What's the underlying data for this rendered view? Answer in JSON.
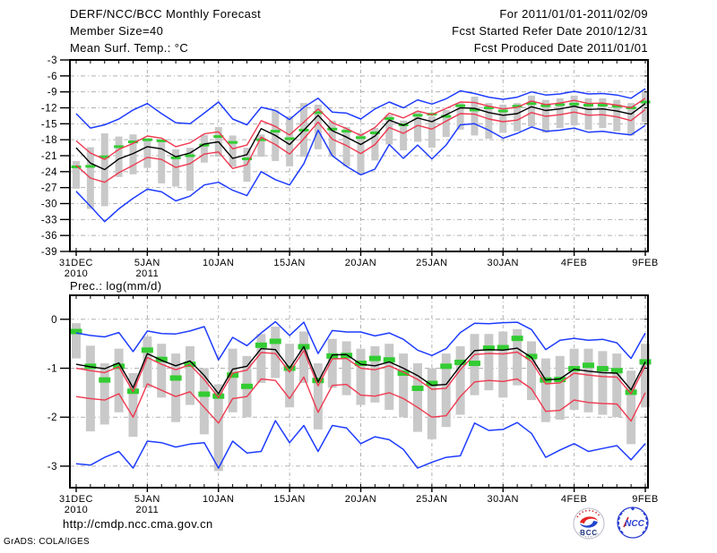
{
  "header": {
    "title": "DERF/NCC/BCC Monthly Forecast",
    "for_range": "For 2011/01/01-2011/02/09",
    "member_size": "Member Size=40",
    "refer_date": "Fcst Started Refer Date 2010/12/31",
    "produced_date": "Fcst Produced Date 2011/01/01",
    "panel1_label": "Mean Surf. Temp.: °C",
    "panel2_label": "Prec.: log(mm/d)"
  },
  "footer": {
    "url": "http://cmdp.ncc.cma.gov.cn",
    "credit": "GrADS: COLA/IGES",
    "logo_bcc": "BCC",
    "logo_ncc": "NCC"
  },
  "colors": {
    "black": "#000000",
    "red": "#ef3950",
    "blue": "#1e3cff",
    "green": "#33cc33",
    "bar": "#c9c9c9",
    "grid": "#b0b0b0",
    "frame": "#000000",
    "logo_blue": "#2b3fd0",
    "logo_red": "#e62222",
    "logo_navy": "#1a2f7a"
  },
  "chart_data": [
    {
      "type": "line",
      "panel_name": "temperature-panel",
      "title": "Mean Surf. Temp.: °C",
      "ylim": [
        -39.0,
        -3.0
      ],
      "yticks": [
        -3,
        -6,
        -9,
        -12,
        -15,
        -18,
        -21,
        -24,
        -27,
        -30,
        -33,
        -36,
        -39
      ],
      "grid": true,
      "legend": "none",
      "x_count": 41,
      "x_tick_positions": [
        0,
        5,
        10,
        15,
        20,
        25,
        30,
        35,
        40
      ],
      "x_tick_labels": [
        "31DEC",
        "5JAN",
        "10JAN",
        "15JAN",
        "20JAN",
        "25JAN",
        "30JAN",
        "4FEB",
        "9FEB"
      ],
      "x_tick_sublabels": [
        "2010",
        "2011",
        "",
        "",
        "",
        "",
        "",
        "",
        ""
      ],
      "series": [
        {
          "name": "upper-envelope-line",
          "label": "ensemble max",
          "color": "blue",
          "values": [
            -13.1,
            -15.8,
            -15.2,
            -14.1,
            -12.4,
            -11.2,
            -13.1,
            -14.8,
            -15.0,
            -13.0,
            -10.9,
            -14.1,
            -15.2,
            -11.9,
            -12.5,
            -14.2,
            -11.9,
            -10.2,
            -12.8,
            -13.0,
            -14.1,
            -12.2,
            -10.9,
            -12.0,
            -10.5,
            -11.3,
            -10.3,
            -8.8,
            -9.3,
            -10.0,
            -10.4,
            -10.0,
            -9.0,
            -9.6,
            -9.4,
            -8.9,
            -9.4,
            -9.3,
            -9.6,
            -10.2,
            -8.4
          ]
        },
        {
          "name": "upper-spread-line",
          "label": "upper spread",
          "color": "red",
          "values": [
            -18.2,
            -20.5,
            -21.7,
            -19.8,
            -18.7,
            -17.3,
            -17.7,
            -19.3,
            -18.6,
            -16.9,
            -16.5,
            -19.7,
            -19.0,
            -14.4,
            -15.5,
            -17.1,
            -14.7,
            -12.2,
            -14.8,
            -15.9,
            -17.2,
            -15.7,
            -13.0,
            -13.9,
            -12.6,
            -13.3,
            -12.1,
            -10.9,
            -11.0,
            -11.7,
            -12.2,
            -11.9,
            -10.7,
            -11.4,
            -11.1,
            -10.6,
            -11.2,
            -11.1,
            -11.5,
            -12.0,
            -10.2
          ]
        },
        {
          "name": "ensemble-mean-line",
          "label": "ensemble mean",
          "color": "black",
          "values": [
            -19.5,
            -22.4,
            -23.6,
            -21.6,
            -20.6,
            -19.3,
            -19.7,
            -21.2,
            -20.5,
            -18.8,
            -18.4,
            -21.5,
            -20.8,
            -15.9,
            -17.2,
            -18.9,
            -16.2,
            -13.4,
            -16.3,
            -17.5,
            -18.9,
            -17.3,
            -14.3,
            -15.3,
            -13.9,
            -14.6,
            -13.3,
            -12.0,
            -12.1,
            -12.9,
            -13.4,
            -13.1,
            -11.8,
            -12.5,
            -12.2,
            -11.7,
            -12.3,
            -12.2,
            -12.6,
            -13.2,
            -11.2
          ]
        },
        {
          "name": "lower-spread-line",
          "label": "lower spread",
          "color": "red",
          "values": [
            -22.8,
            -25.2,
            -26.0,
            -24.2,
            -22.8,
            -21.3,
            -21.7,
            -23.2,
            -22.5,
            -20.7,
            -20.3,
            -23.4,
            -22.7,
            -17.5,
            -18.9,
            -20.7,
            -17.8,
            -14.7,
            -17.9,
            -19.1,
            -20.6,
            -18.9,
            -15.7,
            -16.8,
            -15.3,
            -16.0,
            -14.5,
            -13.1,
            -13.2,
            -14.1,
            -14.6,
            -14.3,
            -12.9,
            -13.6,
            -13.3,
            -12.8,
            -13.4,
            -13.3,
            -13.7,
            -14.4,
            -12.3
          ]
        },
        {
          "name": "lower-envelope-line",
          "label": "ensemble min",
          "color": "blue",
          "values": [
            -27.7,
            -30.5,
            -33.4,
            -31.0,
            -29.0,
            -27.3,
            -27.8,
            -29.5,
            -28.6,
            -26.5,
            -26.0,
            -27.5,
            -28.5,
            -24.0,
            -25.5,
            -26.5,
            -22.5,
            -16.2,
            -21.0,
            -23.0,
            -24.6,
            -23.5,
            -18.9,
            -21.5,
            -19.0,
            -21.6,
            -19.0,
            -15.2,
            -15.0,
            -16.2,
            -17.7,
            -16.8,
            -15.6,
            -16.4,
            -16.2,
            -15.8,
            -16.6,
            -16.4,
            -16.8,
            -17.1,
            -15.3
          ]
        },
        {
          "name": "green-daily-marker",
          "label": "daily marker",
          "color": "green",
          "type": "dash",
          "values": [
            -23.1,
            -23.0,
            -21.2,
            -19.3,
            -18.4,
            -18.0,
            -18.2,
            -21.4,
            -21.0,
            -19.0,
            -17.4,
            -18.5,
            -21.6,
            -18.0,
            -16.4,
            -17.8,
            -16.2,
            -12.9,
            -16.0,
            -16.4,
            -17.6,
            -16.7,
            -14.0,
            -15.2,
            -13.4,
            -13.2,
            -13.6,
            -11.6,
            -12.4,
            -12.0,
            -12.6,
            -11.7,
            -11.2,
            -11.6,
            -11.4,
            -11.3,
            -11.5,
            -11.5,
            -11.7,
            -12.0,
            -10.9
          ]
        }
      ],
      "bars": {
        "name": "ensemble-members-bar",
        "top": [
          -22.0,
          -19.4,
          -16.8,
          -17.4,
          -17.0,
          -17.8,
          -18.4,
          -19.8,
          -19.5,
          -17.1,
          -15.6,
          -17.2,
          -19.5,
          -17.0,
          -12.5,
          -13.6,
          -11.1,
          -11.4,
          -14.4,
          -15.6,
          -16.7,
          -15.8,
          -13.3,
          -14.4,
          -12.7,
          -13.6,
          -12.4,
          -11.1,
          -9.9,
          -11.1,
          -11.4,
          -11.1,
          -9.7,
          -10.5,
          -10.2,
          -9.7,
          -10.2,
          -10.2,
          -10.5,
          -11.1,
          -9.1
        ],
        "bottom": [
          -27.2,
          -31.0,
          -30.5,
          -25.0,
          -24.5,
          -23.3,
          -26.2,
          -26.8,
          -27.6,
          -22.3,
          -21.2,
          -23.1,
          -25.9,
          -21.2,
          -22.0,
          -23.0,
          -21.2,
          -19.8,
          -21.2,
          -23.0,
          -24.6,
          -21.9,
          -18.9,
          -20.0,
          -18.4,
          -19.5,
          -17.5,
          -16.1,
          -17.2,
          -17.8,
          -16.7,
          -16.4,
          -15.5,
          -16.7,
          -15.8,
          -15.3,
          -16.1,
          -15.8,
          -16.4,
          -17.2,
          -14.7
        ]
      }
    },
    {
      "type": "line",
      "panel_name": "precipitation-panel",
      "title": "Prec.: log(mm/d)",
      "ylim": [
        -3.44,
        0.49
      ],
      "yticks": [
        0,
        -1,
        -2,
        -3
      ],
      "grid": true,
      "legend": "none",
      "x_count": 41,
      "x_tick_positions": [
        0,
        5,
        10,
        15,
        20,
        25,
        30,
        35,
        40
      ],
      "x_tick_labels": [
        "31DEC",
        "5JAN",
        "10JAN",
        "15JAN",
        "20JAN",
        "25JAN",
        "30JAN",
        "4FEB",
        "9FEB"
      ],
      "x_tick_sublabels": [
        "2010",
        "2011",
        "",
        "",
        "",
        "",
        "",
        "",
        ""
      ],
      "series": [
        {
          "name": "upper-envelope-line",
          "label": "ensemble max",
          "color": "blue",
          "values": [
            -0.28,
            -0.33,
            -0.36,
            -0.27,
            -0.66,
            -0.24,
            -0.29,
            -0.3,
            -0.24,
            -0.15,
            -0.83,
            -0.37,
            -0.54,
            -0.28,
            -0.05,
            -0.33,
            -0.06,
            -0.7,
            -0.23,
            -0.26,
            -0.26,
            -0.34,
            -0.28,
            -0.41,
            -0.63,
            -0.74,
            -0.6,
            -0.27,
            -0.08,
            -0.09,
            -0.07,
            -0.06,
            -0.21,
            -0.62,
            -0.43,
            -0.39,
            -0.43,
            -0.41,
            -0.48,
            -0.8,
            -0.28
          ]
        },
        {
          "name": "upper-spread-line",
          "label": "upper spread",
          "color": "red",
          "values": [
            -1.0,
            -1.05,
            -1.09,
            -0.97,
            -1.48,
            -0.78,
            -0.92,
            -1.03,
            -0.93,
            -1.23,
            -1.6,
            -1.1,
            -1.04,
            -0.68,
            -0.7,
            -1.08,
            -0.64,
            -1.36,
            -0.81,
            -0.8,
            -1.0,
            -1.03,
            -0.95,
            -1.08,
            -1.23,
            -1.43,
            -1.41,
            -1.03,
            -0.72,
            -0.7,
            -0.71,
            -0.67,
            -0.86,
            -1.32,
            -1.3,
            -1.1,
            -1.14,
            -1.17,
            -1.18,
            -1.52,
            -0.95
          ]
        },
        {
          "name": "ensemble-mean-line",
          "label": "ensemble mean",
          "color": "black",
          "values": [
            -0.92,
            -0.97,
            -1.01,
            -0.89,
            -1.4,
            -0.7,
            -0.84,
            -0.95,
            -0.85,
            -1.15,
            -1.52,
            -1.02,
            -0.96,
            -0.6,
            -0.62,
            -1.0,
            -0.56,
            -1.28,
            -0.73,
            -0.72,
            -0.92,
            -0.95,
            -0.87,
            -1.0,
            -1.15,
            -1.35,
            -1.33,
            -0.95,
            -0.64,
            -0.62,
            -0.63,
            -0.59,
            -0.78,
            -1.24,
            -1.22,
            -1.02,
            -1.06,
            -1.09,
            -1.1,
            -1.44,
            -0.87
          ]
        },
        {
          "name": "lower-spread-line",
          "label": "lower spread",
          "color": "red",
          "values": [
            -1.58,
            -1.62,
            -1.65,
            -1.52,
            -2.0,
            -1.32,
            -1.45,
            -1.58,
            -1.48,
            -1.8,
            -2.12,
            -1.62,
            -1.58,
            -1.22,
            -1.25,
            -1.62,
            -1.18,
            -1.9,
            -1.35,
            -1.33,
            -1.55,
            -1.57,
            -1.5,
            -1.62,
            -1.8,
            -2.0,
            -1.97,
            -1.58,
            -1.28,
            -1.25,
            -1.27,
            -1.22,
            -1.42,
            -1.88,
            -1.86,
            -1.65,
            -1.7,
            -1.72,
            -1.73,
            -2.08,
            -1.5
          ]
        },
        {
          "name": "lower-envelope-line",
          "label": "ensemble min",
          "color": "blue",
          "values": [
            -2.95,
            -2.98,
            -2.82,
            -2.7,
            -3.04,
            -2.49,
            -2.52,
            -2.61,
            -2.55,
            -2.52,
            -3.04,
            -2.49,
            -2.73,
            -2.7,
            -2.07,
            -2.52,
            -2.17,
            -2.7,
            -2.17,
            -2.22,
            -2.54,
            -2.4,
            -2.46,
            -2.66,
            -3.04,
            -2.92,
            -2.82,
            -2.79,
            -2.12,
            -2.27,
            -2.25,
            -2.11,
            -2.33,
            -2.82,
            -2.67,
            -2.54,
            -2.7,
            -2.64,
            -2.58,
            -2.87,
            -2.54
          ]
        },
        {
          "name": "green-daily-marker",
          "label": "daily marker",
          "color": "green",
          "type": "dash",
          "values": [
            -0.25,
            -0.96,
            -1.24,
            -0.96,
            -1.47,
            -0.63,
            -0.82,
            -1.2,
            -0.92,
            -1.53,
            -1.57,
            -1.14,
            -1.37,
            -0.53,
            -0.45,
            -1.0,
            -0.56,
            -1.25,
            -0.75,
            -0.74,
            -0.9,
            -0.8,
            -0.83,
            -1.1,
            -1.41,
            -1.31,
            -0.96,
            -0.88,
            -0.9,
            -0.59,
            -0.58,
            -0.39,
            -0.76,
            -1.24,
            -1.23,
            -1.01,
            -0.94,
            -1.01,
            -1.05,
            -1.49,
            -0.87
          ]
        }
      ],
      "bars": {
        "name": "ensemble-members-bar",
        "top": [
          -0.08,
          -0.54,
          -0.9,
          -0.6,
          -1.1,
          -0.35,
          -0.5,
          -0.7,
          -0.55,
          -1.0,
          -1.33,
          -0.6,
          -0.75,
          -0.3,
          -0.15,
          -0.5,
          -0.25,
          -0.9,
          -0.4,
          -0.45,
          -0.6,
          -0.55,
          -0.5,
          -0.7,
          -0.9,
          -1.0,
          -0.7,
          -0.55,
          -0.3,
          -0.3,
          -0.25,
          -0.2,
          -0.45,
          -0.8,
          -0.75,
          -0.6,
          -0.6,
          -0.65,
          -0.7,
          -1.05,
          -0.5
        ],
        "bottom": [
          -0.8,
          -2.29,
          -2.15,
          -1.9,
          -2.4,
          -1.4,
          -1.6,
          -2.1,
          -1.75,
          -2.35,
          -3.1,
          -1.9,
          -2.0,
          -1.3,
          -1.2,
          -1.8,
          -1.3,
          -2.25,
          -1.4,
          -1.55,
          -1.75,
          -1.7,
          -1.85,
          -2.0,
          -2.3,
          -2.45,
          -2.2,
          -1.95,
          -1.55,
          -1.45,
          -1.6,
          -1.35,
          -1.65,
          -2.1,
          -2.05,
          -1.85,
          -1.9,
          -1.95,
          -2.0,
          -2.55,
          -1.8
        ]
      }
    }
  ]
}
